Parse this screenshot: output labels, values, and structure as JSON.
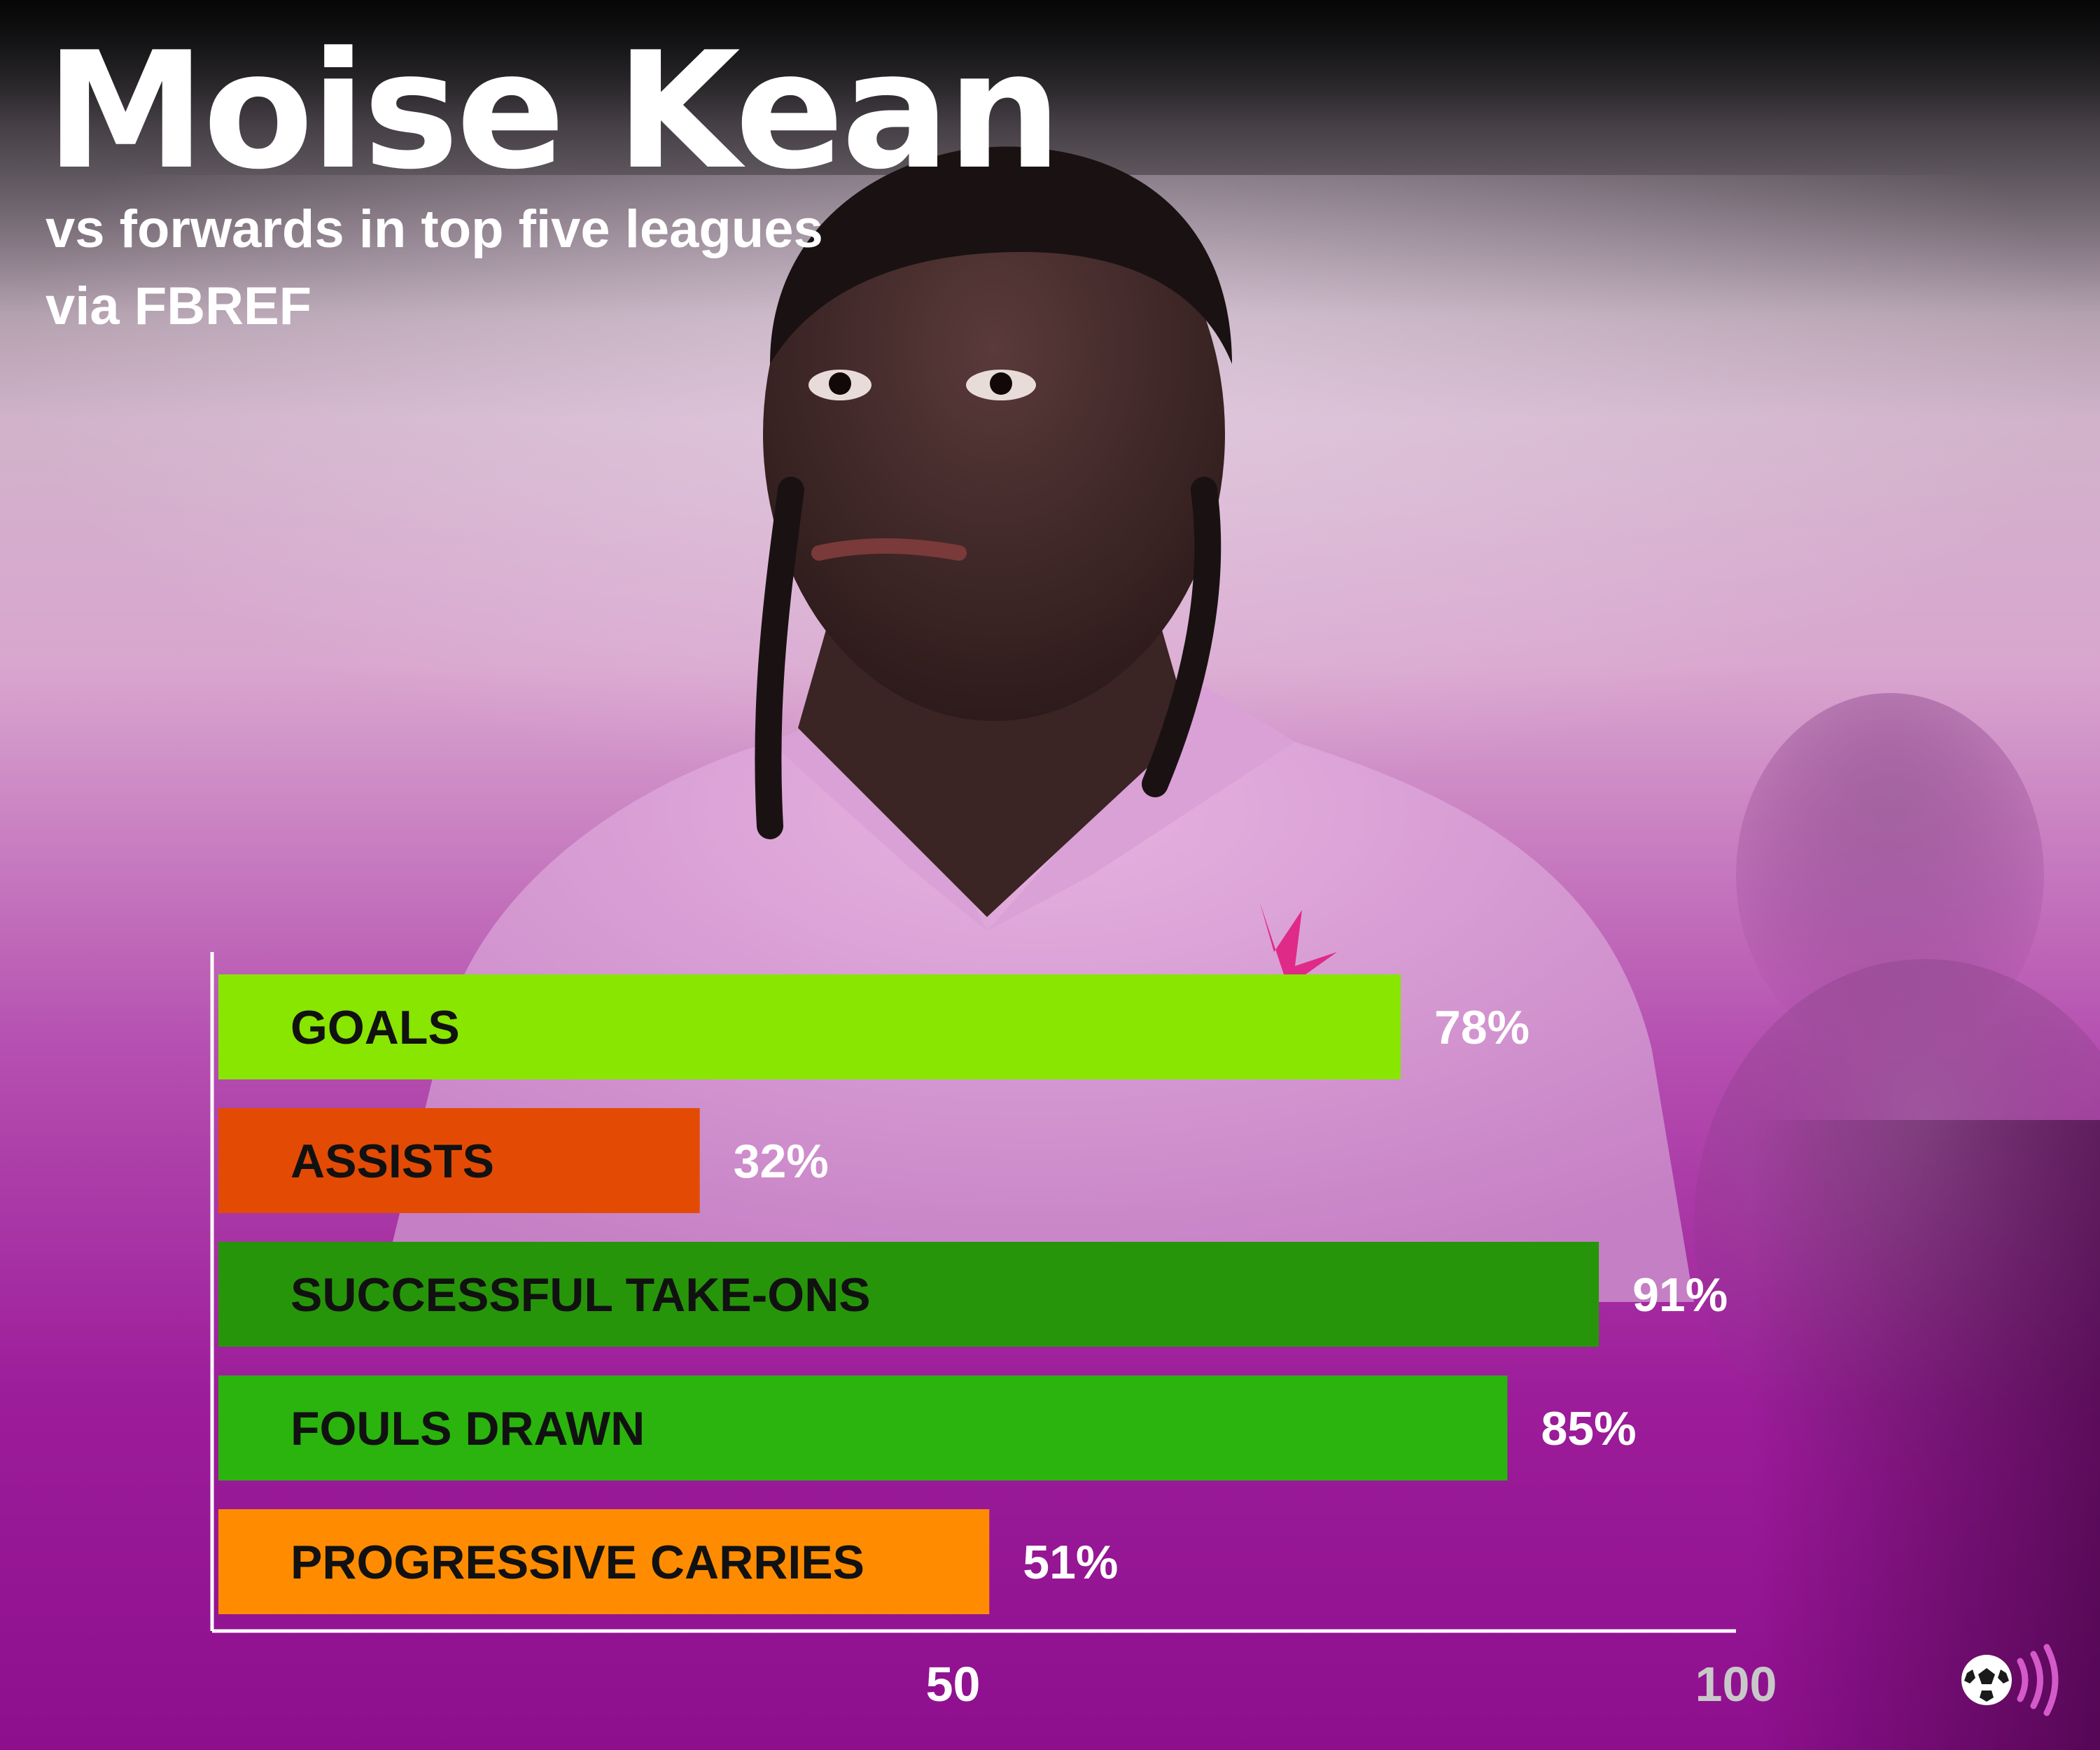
{
  "header": {
    "title": "Moise Kean",
    "subtitle": "vs forwards in top five leagues",
    "source": "via FBREF"
  },
  "colors": {
    "title": "#ffffff",
    "goals": "#88e600",
    "assists": "#e34b05",
    "successful_take_ons": "#27950a",
    "fouls_drawn": "#2ab40d",
    "progressive_carries": "#ff8c00",
    "tick_50": "#ffffff",
    "tick_100": "#c8c8c8",
    "axis": "#ffffff"
  },
  "chart_data": {
    "type": "bar",
    "orientation": "horizontal",
    "categories": [
      "GOALS",
      "ASSISTS",
      "SUCCESSFUL TAKE-ONS",
      "FOULS DRAWN",
      "PROGRESSIVE CARRIES"
    ],
    "values": [
      78,
      32,
      91,
      85,
      51
    ],
    "value_labels": [
      "78%",
      "32%",
      "91%",
      "85%",
      "51%"
    ],
    "unit": "%",
    "xlim": [
      0,
      100
    ],
    "x_ticks": [
      50,
      100
    ],
    "x_tick_labels": [
      "50",
      "100"
    ],
    "grid": false,
    "legend": "none"
  },
  "icons": {
    "brand": "football-broadcast-icon"
  }
}
